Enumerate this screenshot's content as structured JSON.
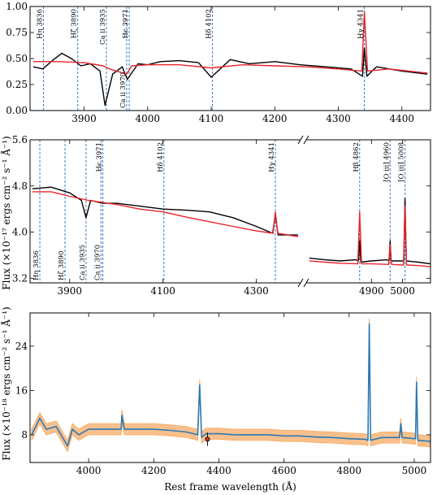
{
  "colors": {
    "observed": "#000000",
    "model": "#e8242b",
    "line_marker": "#3a7bbf",
    "spectrum": "#2b79b5",
    "error_band": "#f6b06f",
    "point_fill": "#c0392b"
  },
  "chart_data": [
    {
      "type": "line",
      "panel": "top",
      "xlim": [
        3815,
        4445
      ],
      "ylim": [
        0.0,
        1.0
      ],
      "x_ticks": [
        "3900",
        "4000",
        "4100",
        "4200",
        "4300",
        "4400"
      ],
      "y_ticks": [
        "0.00",
        "0.25",
        "0.50",
        "0.75",
        "1.00"
      ],
      "series": [
        {
          "color": "#000000",
          "x": [
            3820,
            3835,
            3850,
            3865,
            3880,
            3895,
            3910,
            3925,
            3933,
            3945,
            3960,
            3968,
            3985,
            4000,
            4020,
            4050,
            4080,
            4100,
            4130,
            4160,
            4200,
            4240,
            4280,
            4320,
            4338,
            4341,
            4345,
            4360,
            4400,
            4440
          ],
          "y": [
            0.42,
            0.4,
            0.48,
            0.55,
            0.5,
            0.43,
            0.45,
            0.38,
            0.05,
            0.35,
            0.42,
            0.3,
            0.45,
            0.44,
            0.47,
            0.48,
            0.46,
            0.32,
            0.49,
            0.45,
            0.47,
            0.44,
            0.42,
            0.4,
            0.33,
            0.6,
            0.33,
            0.42,
            0.38,
            0.35
          ]
        },
        {
          "color": "#e8242b",
          "x": [
            3820,
            3860,
            3900,
            3930,
            3940,
            3967,
            3975,
            4000,
            4050,
            4100,
            4150,
            4200,
            4250,
            4300,
            4337,
            4341,
            4346,
            4380,
            4440
          ],
          "y": [
            0.47,
            0.47,
            0.46,
            0.43,
            0.4,
            0.35,
            0.43,
            0.44,
            0.44,
            0.41,
            0.44,
            0.43,
            0.42,
            0.4,
            0.38,
            0.95,
            0.38,
            0.4,
            0.36
          ]
        }
      ],
      "lines": [
        {
          "x": 3836,
          "label": "Hη 3836",
          "pos": "top"
        },
        {
          "x": 3890,
          "label": "Hζ 3890",
          "pos": "top"
        },
        {
          "x": 3935,
          "label": "Ca ii 3935",
          "pos": "top"
        },
        {
          "x": 3967,
          "label": "Ca ii 3970",
          "pos": "bottom"
        },
        {
          "x": 3971,
          "label": "Hϵ 3971",
          "pos": "top"
        },
        {
          "x": 4102,
          "label": "Hδ 4102",
          "pos": "top"
        },
        {
          "x": 4341,
          "label": "Hγ 4341",
          "pos": "top"
        }
      ]
    },
    {
      "type": "line",
      "panel": "middle",
      "ylim": [
        3.12,
        5.6
      ],
      "y_ticks": [
        "3.2",
        "4.0",
        "4.8",
        "5.6"
      ],
      "left_xlim": [
        3815,
        4395
      ],
      "right_xlim": [
        4690,
        5090
      ],
      "x_ticks_left": [
        "3900",
        "4100",
        "4300"
      ],
      "x_ticks_right": [
        "4900",
        "5000"
      ],
      "series": [
        {
          "color": "#000000",
          "segment": "left",
          "x": [
            3820,
            3860,
            3900,
            3925,
            3935,
            3945,
            3970,
            4000,
            4050,
            4100,
            4150,
            4200,
            4250,
            4300,
            4335,
            4341,
            4347,
            4390
          ],
          "y": [
            4.75,
            4.78,
            4.68,
            4.55,
            4.25,
            4.55,
            4.5,
            4.5,
            4.45,
            4.4,
            4.38,
            4.35,
            4.25,
            4.1,
            3.98,
            4.3,
            3.95,
            3.95
          ]
        },
        {
          "color": "#e8242b",
          "segment": "left",
          "x": [
            3820,
            3860,
            3900,
            3940,
            4000,
            4050,
            4100,
            4150,
            4200,
            4250,
            4300,
            4336,
            4341,
            4346,
            4390
          ],
          "y": [
            4.7,
            4.7,
            4.62,
            4.55,
            4.48,
            4.4,
            4.35,
            4.26,
            4.18,
            4.1,
            4.02,
            3.98,
            4.35,
            3.98,
            3.92
          ]
        },
        {
          "color": "#000000",
          "segment": "right",
          "x": [
            4700,
            4750,
            4800,
            4850,
            4858,
            4862,
            4866,
            4900,
            4950,
            4957,
            4960,
            4963,
            5000,
            5004,
            5008,
            5012,
            5050,
            5090
          ],
          "y": [
            3.55,
            3.52,
            3.5,
            3.52,
            3.5,
            3.85,
            3.48,
            3.5,
            3.52,
            3.5,
            3.85,
            3.5,
            3.5,
            3.5,
            4.58,
            3.5,
            3.48,
            3.45
          ]
        },
        {
          "color": "#e8242b",
          "segment": "right",
          "x": [
            4700,
            4750,
            4800,
            4856,
            4862,
            4868,
            4900,
            4955,
            4960,
            4965,
            5000,
            5003,
            5008,
            5013,
            5050,
            5090
          ],
          "y": [
            3.5,
            3.48,
            3.46,
            3.45,
            4.35,
            3.45,
            3.45,
            3.44,
            3.78,
            3.44,
            3.43,
            3.43,
            4.45,
            3.43,
            3.42,
            3.4
          ]
        }
      ],
      "lines": [
        {
          "x": 3836,
          "label": "Hη 3836",
          "pos": "bottom"
        },
        {
          "x": 3890,
          "label": "Hζ 3890",
          "pos": "bottom"
        },
        {
          "x": 3935,
          "label": "Ca ii 3935",
          "pos": "bottom"
        },
        {
          "x": 3967,
          "label": "Ca ii 3970",
          "pos": "bottom"
        },
        {
          "x": 3971,
          "label": "Hϵ 3971",
          "pos": "top"
        },
        {
          "x": 4102,
          "label": "Hδ 4102",
          "pos": "top"
        },
        {
          "x": 4341,
          "label": "Hγ 4341",
          "pos": "top"
        },
        {
          "x": 4862,
          "label": "Hβ 4862",
          "pos": "top"
        },
        {
          "x": 4960,
          "label": "[O iii] 4960",
          "pos": "top"
        },
        {
          "x": 5008,
          "label": "[O iii] 5008",
          "pos": "top"
        }
      ]
    },
    {
      "type": "line",
      "panel": "bottom",
      "xlim": [
        3820,
        5050
      ],
      "ylim": [
        3,
        30
      ],
      "x_ticks": [
        "4000",
        "4200",
        "4400",
        "4600",
        "4800",
        "5000"
      ],
      "y_ticks": [
        "8",
        "16",
        "24"
      ],
      "xlabel": "Rest frame wavelength (Å)",
      "series": [
        {
          "color": "#2b79b5",
          "x": [
            3825,
            3850,
            3870,
            3900,
            3935,
            3950,
            3970,
            4000,
            4050,
            4100,
            4102,
            4110,
            4150,
            4200,
            4250,
            4300,
            4335,
            4341,
            4347,
            4360,
            4400,
            4450,
            4500,
            4550,
            4600,
            4650,
            4700,
            4750,
            4800,
            4850,
            4858,
            4862,
            4866,
            4900,
            4955,
            4959,
            4963,
            5000,
            5004,
            5007,
            5011,
            5050
          ],
          "y": [
            8.0,
            11.0,
            9.0,
            9.5,
            6.0,
            9.0,
            8.0,
            9.0,
            9.0,
            9.0,
            11.5,
            9.0,
            9.0,
            9.0,
            8.8,
            8.5,
            8.0,
            17.0,
            7.5,
            8.2,
            8.2,
            8.0,
            8.0,
            8.0,
            7.8,
            7.8,
            7.6,
            7.5,
            7.3,
            7.2,
            7.0,
            28.0,
            7.0,
            7.5,
            7.5,
            10.0,
            7.5,
            7.3,
            7.3,
            17.5,
            7.0,
            6.8
          ]
        }
      ],
      "error_band": {
        "half_width": 1.0
      },
      "points": [
        {
          "x": 4365,
          "y": 7.2,
          "err": 1.2
        }
      ]
    }
  ],
  "labels": {
    "middle_ylabel": "Flux (×10⁻¹⁷ ergs cm⁻² s⁻¹ Å⁻¹)",
    "bottom_ylabel": "Flux (×10⁻¹⁸ ergs cm⁻² s⁻¹ Å⁻¹)"
  }
}
